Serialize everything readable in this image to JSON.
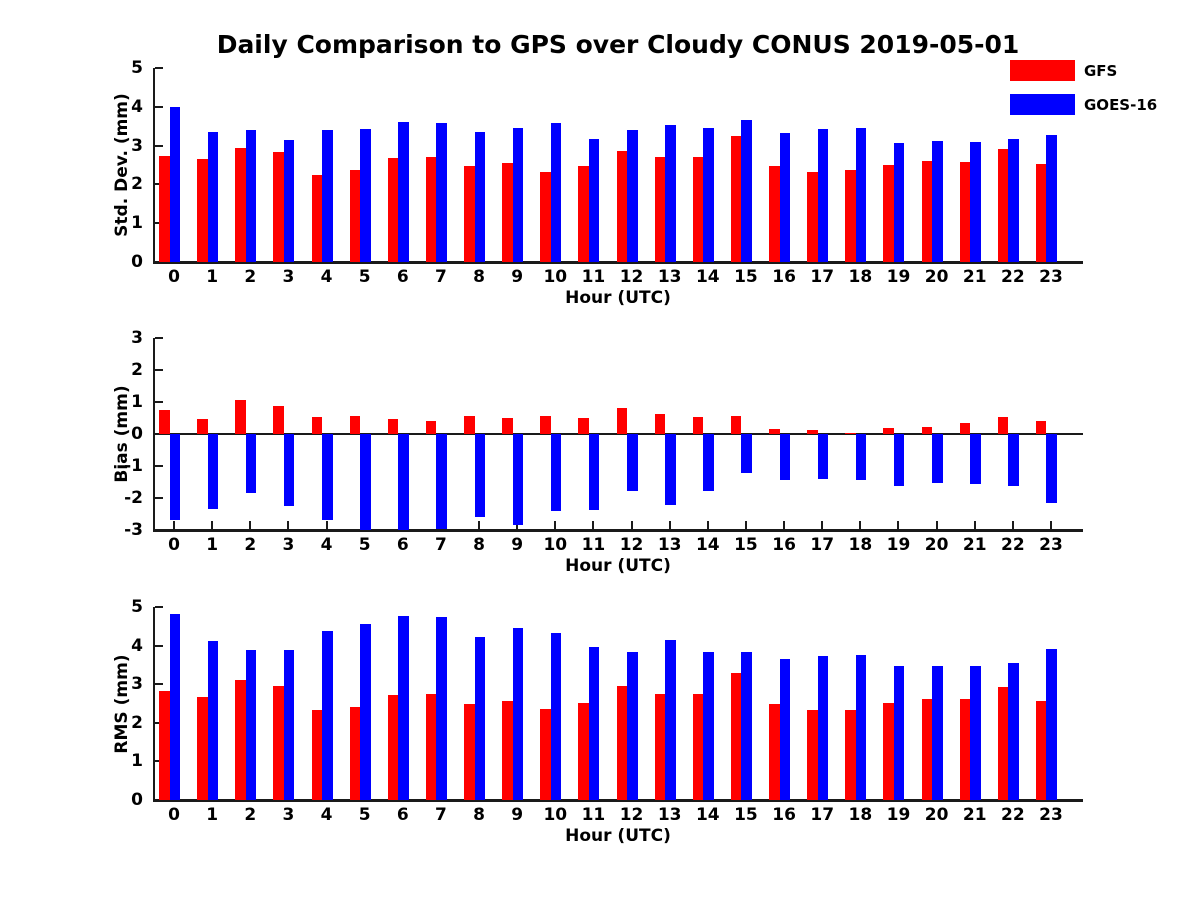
{
  "title": "Daily Comparison to GPS over Cloudy CONUS 2019-05-01",
  "legend": {
    "position": "top-right",
    "items": [
      {
        "label": "GFS",
        "color": "#ff0000"
      },
      {
        "label": "GOES-16",
        "color": "#0000ff"
      }
    ]
  },
  "chart_data": [
    {
      "type": "bar",
      "panel": "std-dev",
      "ylabel": "Std. Dev. (mm)",
      "xlabel": "Hour (UTC)",
      "ylim": [
        0,
        5
      ],
      "yticks": [
        0,
        1,
        2,
        3,
        4,
        5
      ],
      "grid": false,
      "categories": [
        "0",
        "1",
        "2",
        "3",
        "4",
        "5",
        "6",
        "7",
        "8",
        "9",
        "10",
        "11",
        "12",
        "13",
        "14",
        "15",
        "16",
        "17",
        "18",
        "19",
        "20",
        "21",
        "22",
        "23"
      ],
      "series": [
        {
          "name": "GFS",
          "color": "#ff0000",
          "values": [
            2.72,
            2.65,
            2.95,
            2.83,
            2.25,
            2.37,
            2.67,
            2.7,
            2.47,
            2.55,
            2.32,
            2.47,
            2.85,
            2.7,
            2.7,
            3.25,
            2.48,
            2.33,
            2.36,
            2.5,
            2.6,
            2.58,
            2.9,
            2.53
          ]
        },
        {
          "name": "GOES-16",
          "color": "#0000ff",
          "values": [
            4.0,
            3.35,
            3.41,
            3.15,
            3.41,
            3.43,
            3.62,
            3.58,
            3.34,
            3.45,
            3.58,
            3.18,
            3.41,
            3.52,
            3.45,
            3.67,
            3.33,
            3.43,
            3.46,
            3.07,
            3.13,
            3.1,
            3.16,
            3.27
          ]
        }
      ]
    },
    {
      "type": "bar",
      "panel": "bias",
      "ylabel": "Bias (mm)",
      "xlabel": "Hour (UTC)",
      "ylim": [
        -3,
        3
      ],
      "yticks": [
        -3,
        -2,
        -1,
        0,
        1,
        2,
        3
      ],
      "zero_line": true,
      "grid": false,
      "categories": [
        "0",
        "1",
        "2",
        "3",
        "4",
        "5",
        "6",
        "7",
        "8",
        "9",
        "10",
        "11",
        "12",
        "13",
        "14",
        "15",
        "16",
        "17",
        "18",
        "19",
        "20",
        "21",
        "22",
        "23"
      ],
      "series": [
        {
          "name": "GFS",
          "color": "#ff0000",
          "values": [
            0.76,
            0.46,
            1.05,
            0.88,
            0.52,
            0.57,
            0.46,
            0.41,
            0.57,
            0.5,
            0.55,
            0.51,
            0.81,
            0.63,
            0.52,
            0.57,
            0.15,
            0.11,
            0.03,
            0.18,
            0.22,
            0.33,
            0.54,
            0.41
          ]
        },
        {
          "name": "GOES-16",
          "color": "#0000ff",
          "values": [
            -2.69,
            -2.35,
            -1.84,
            -2.24,
            -2.7,
            -3.0,
            -3.0,
            -2.97,
            -2.59,
            -2.85,
            -2.4,
            -2.38,
            -1.77,
            -2.23,
            -1.77,
            -1.21,
            -1.44,
            -1.42,
            -1.45,
            -1.63,
            -1.52,
            -1.57,
            -1.62,
            -2.17
          ]
        }
      ]
    },
    {
      "type": "bar",
      "panel": "rms",
      "ylabel": "RMS (mm)",
      "xlabel": "Hour (UTC)",
      "ylim": [
        0,
        5
      ],
      "yticks": [
        0,
        1,
        2,
        3,
        4,
        5
      ],
      "grid": false,
      "categories": [
        "0",
        "1",
        "2",
        "3",
        "4",
        "5",
        "6",
        "7",
        "8",
        "9",
        "10",
        "11",
        "12",
        "13",
        "14",
        "15",
        "16",
        "17",
        "18",
        "19",
        "20",
        "21",
        "22",
        "23"
      ],
      "series": [
        {
          "name": "GFS",
          "color": "#ff0000",
          "values": [
            2.82,
            2.68,
            3.12,
            2.96,
            2.32,
            2.42,
            2.72,
            2.74,
            2.5,
            2.57,
            2.37,
            2.52,
            2.96,
            2.75,
            2.75,
            3.28,
            2.5,
            2.32,
            2.32,
            2.51,
            2.62,
            2.62,
            2.94,
            2.56
          ]
        },
        {
          "name": "GOES-16",
          "color": "#0000ff",
          "values": [
            4.83,
            4.13,
            3.89,
            3.88,
            4.38,
            4.55,
            4.76,
            4.73,
            4.23,
            4.46,
            4.33,
            3.96,
            3.83,
            4.15,
            3.83,
            3.83,
            3.64,
            3.72,
            3.76,
            3.47,
            3.47,
            3.47,
            3.55,
            3.92
          ]
        }
      ]
    }
  ]
}
